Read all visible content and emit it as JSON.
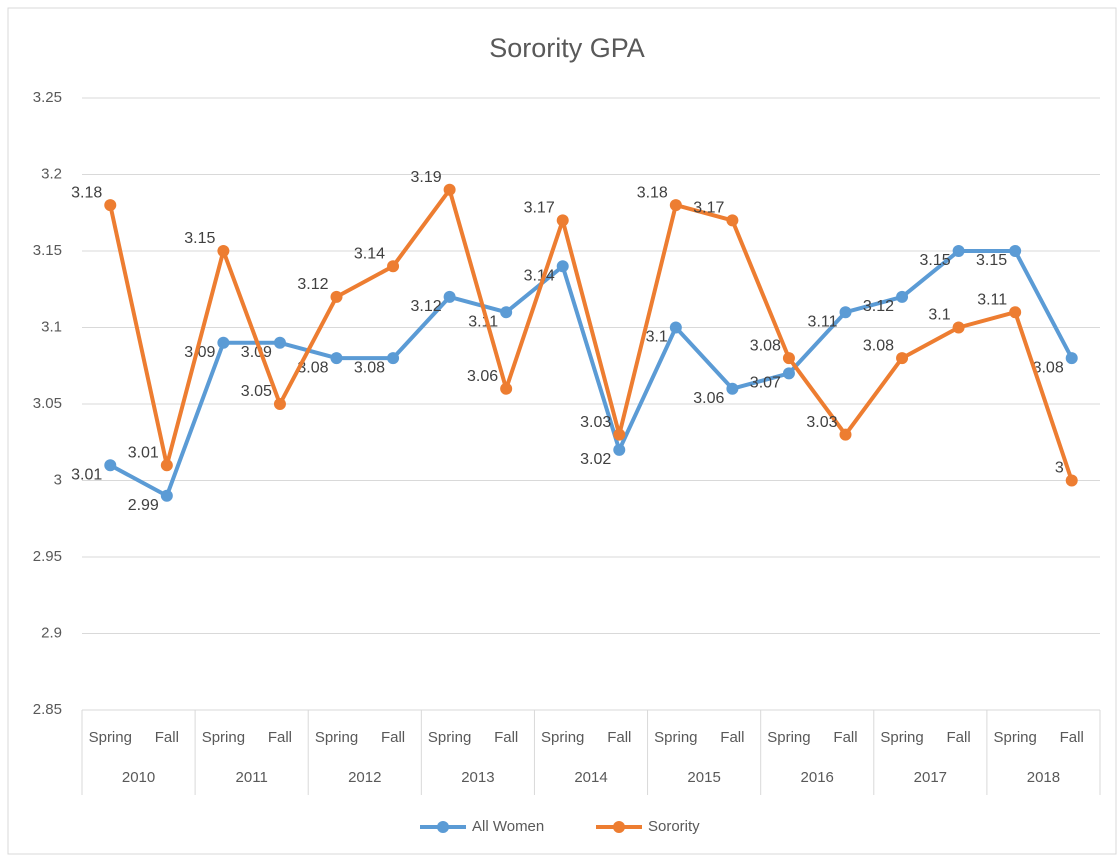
{
  "chart_data": {
    "type": "line",
    "title": "Sorority GPA",
    "categories": [
      "Spring",
      "Fall",
      "Spring",
      "Fall",
      "Spring",
      "Fall",
      "Spring",
      "Fall",
      "Spring",
      "Fall",
      "Spring",
      "Fall",
      "Spring",
      "Fall",
      "Spring",
      "Fall",
      "Spring",
      "Fall"
    ],
    "category_groups": [
      "2010",
      "2011",
      "2012",
      "2013",
      "2014",
      "2015",
      "2016",
      "2017",
      "2018"
    ],
    "series": [
      {
        "name": "All Women",
        "color": "#5b9bd5",
        "values": [
          3.01,
          2.99,
          3.09,
          3.09,
          3.08,
          3.08,
          3.12,
          3.11,
          3.14,
          3.02,
          3.1,
          3.06,
          3.07,
          3.11,
          3.12,
          3.15,
          3.15,
          3.08
        ]
      },
      {
        "name": "Sorority",
        "color": "#ed7d31",
        "values": [
          3.18,
          3.01,
          3.15,
          3.05,
          3.12,
          3.14,
          3.19,
          3.06,
          3.17,
          3.03,
          3.18,
          3.17,
          3.08,
          3.03,
          3.08,
          3.1,
          3.11,
          3
        ]
      }
    ],
    "ylim": [
      2.85,
      3.25
    ],
    "yticks": [
      2.85,
      2.9,
      2.95,
      3,
      3.05,
      3.1,
      3.15,
      3.2,
      3.25
    ],
    "grid": true,
    "legend": "bottom"
  }
}
